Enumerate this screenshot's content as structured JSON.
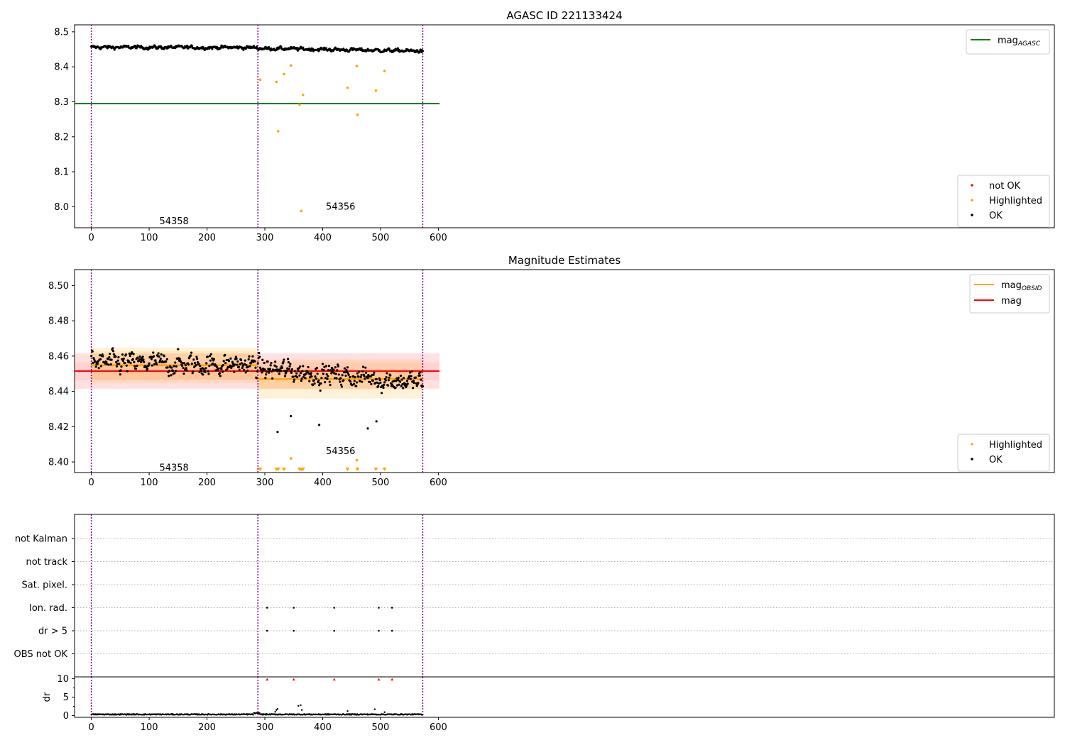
{
  "chart_data": [
    {
      "type": "scatter",
      "title": "AGASC ID 221133424",
      "xlabel": "",
      "ylabel": "",
      "xlim": [
        -29,
        1665
      ],
      "ylim": [
        7.94,
        8.52
      ],
      "xticks": [
        0,
        100,
        200,
        300,
        400,
        500,
        600
      ],
      "yticks": [
        8.0,
        8.1,
        8.2,
        8.3,
        8.4,
        8.5
      ],
      "ytick_labels": [
        "8.0",
        "8.1",
        "8.2",
        "8.3",
        "8.4",
        "8.5"
      ],
      "obsid_boundaries": [
        0,
        288,
        573
      ],
      "obsid_labels": [
        {
          "text": "54358",
          "x": 143,
          "y": 7.96
        },
        {
          "text": "54356",
          "x": 431,
          "y": 8.002
        }
      ],
      "lines": [
        {
          "name_main": "mag",
          "name_sub": "AGASC",
          "value": 8.295,
          "xrange": [
            -29,
            602
          ],
          "color": "#008000"
        }
      ],
      "ok_trend": {
        "segments": [
          {
            "x0": 0,
            "x1": 288,
            "v0": 8.456,
            "v1": 8.455
          },
          {
            "x0": 289,
            "x1": 573,
            "v0": 8.453,
            "v1": 8.445
          }
        ],
        "amplitude": 0.008
      },
      "highlighted": [
        {
          "x": 292,
          "y": 8.363
        },
        {
          "x": 320,
          "y": 8.357
        },
        {
          "x": 323,
          "y": 8.216
        },
        {
          "x": 333,
          "y": 8.379
        },
        {
          "x": 345,
          "y": 8.404
        },
        {
          "x": 360,
          "y": 8.292
        },
        {
          "x": 363,
          "y": 7.988
        },
        {
          "x": 366,
          "y": 8.32
        },
        {
          "x": 443,
          "y": 8.34
        },
        {
          "x": 459,
          "y": 8.402
        },
        {
          "x": 460,
          "y": 8.263
        },
        {
          "x": 492,
          "y": 8.332
        },
        {
          "x": 507,
          "y": 8.388
        }
      ],
      "not_ok": [],
      "legend_lines": [
        {
          "label_main": "mag",
          "label_sub": "AGASC",
          "color": "#008000"
        }
      ],
      "legend_points": [
        {
          "label": "not OK",
          "color": "#ff0000"
        },
        {
          "label": "Highlighted",
          "color": "#ffa500"
        },
        {
          "label": "OK",
          "color": "#000000"
        }
      ]
    },
    {
      "type": "scatter",
      "title": "Magnitude Estimates",
      "xlabel": "",
      "ylabel": "",
      "xlim": [
        -29,
        1665
      ],
      "ylim": [
        8.394,
        8.509
      ],
      "xticks": [
        0,
        100,
        200,
        300,
        400,
        500,
        600
      ],
      "yticks": [
        8.4,
        8.42,
        8.44,
        8.46,
        8.48,
        8.5
      ],
      "ytick_labels": [
        "8.40",
        "8.42",
        "8.44",
        "8.46",
        "8.48",
        "8.50"
      ],
      "obsid_boundaries": [
        0,
        288,
        573
      ],
      "obsid_labels": [
        {
          "text": "54358",
          "x": 143,
          "y": 8.397
        },
        {
          "text": "54356",
          "x": 431,
          "y": 8.4065
        }
      ],
      "mag": {
        "name": "mag",
        "value": 8.4515,
        "band_inner": 0.005,
        "band_outer": 0.01,
        "xrange": [
          -29,
          602
        ],
        "color": "#ff0000"
      },
      "mag_obsid": [
        {
          "x0": 0,
          "x1": 288,
          "value": 8.4548,
          "band_inner": 0.008,
          "band_outer": 0.01
        },
        {
          "x0": 288,
          "x1": 573,
          "value": 8.447,
          "band_inner": 0.0058,
          "band_outer": 0.011
        }
      ],
      "ok_trend": {
        "segments": [
          {
            "x0": 0,
            "x1": 288,
            "v0": 8.456,
            "v1": 8.455
          },
          {
            "x0": 289,
            "x1": 573,
            "v0": 8.453,
            "v1": 8.445
          }
        ],
        "amplitude": 0.01
      },
      "outliers": [
        {
          "x": 322,
          "y": 8.417
        },
        {
          "x": 394,
          "y": 8.421
        },
        {
          "x": 478,
          "y": 8.419
        },
        {
          "x": 493,
          "y": 8.423
        },
        {
          "x": 345,
          "y": 8.426
        }
      ],
      "highlighted": [
        {
          "x": 345,
          "y": 8.402
        },
        {
          "x": 459,
          "y": 8.401
        }
      ],
      "highlighted_offscale_x": [
        292,
        320,
        323,
        333,
        360,
        363,
        366,
        443,
        460,
        492,
        507
      ],
      "legend_lines": [
        {
          "label_main": "mag",
          "label_sub": "OBSID",
          "color": "#ffa500"
        },
        {
          "label_main": "mag",
          "label_sub": "",
          "color": "#ff0000"
        }
      ],
      "legend_points": [
        {
          "label": "Highlighted",
          "color": "#ffa500"
        },
        {
          "label": "OK",
          "color": "#000000"
        }
      ]
    },
    {
      "type": "scatter",
      "title": "",
      "xlabel": "",
      "ylabel": "",
      "xlim": [
        -29,
        1665
      ],
      "flag_rows": [
        "not Kalman",
        "not track",
        "Sat. pixel.",
        "Ion. rad.",
        "dr > 5",
        "OBS not OK"
      ],
      "obsid_boundaries": [
        0,
        288,
        573
      ],
      "flags": [
        {
          "row": "Ion. rad.",
          "x": [
            304,
            350,
            420,
            497,
            520
          ]
        },
        {
          "row": "dr > 5",
          "x": [
            304,
            350,
            420,
            497,
            520
          ]
        }
      ],
      "no_flag_rows": [
        "not Kalman",
        "not track",
        "Sat. pixel.",
        "OBS not OK"
      ]
    },
    {
      "type": "scatter",
      "title": "",
      "xlabel": "",
      "ylabel": "dr",
      "xlim": [
        -29,
        1665
      ],
      "ylim": [
        -0.5,
        10.5
      ],
      "xticks": [
        0,
        100,
        200,
        300,
        400,
        500,
        600
      ],
      "yticks": [
        0,
        5,
        10
      ],
      "ytick_labels": [
        "0",
        "5",
        "10"
      ],
      "obsid_boundaries": [
        0,
        288,
        573
      ],
      "baseline": 0.3,
      "spikes": [
        {
          "x": 318,
          "y": 1.0
        },
        {
          "x": 320,
          "y": 1.5
        },
        {
          "x": 322,
          "y": 1.8
        },
        {
          "x": 358,
          "y": 2.6
        },
        {
          "x": 362,
          "y": 2.8
        },
        {
          "x": 364,
          "y": 1.5
        },
        {
          "x": 443,
          "y": 1.2
        },
        {
          "x": 490,
          "y": 1.7
        },
        {
          "x": 507,
          "y": 0.9
        }
      ],
      "capped": {
        "x": [
          304,
          350,
          420,
          497,
          520
        ],
        "y": 10
      }
    }
  ]
}
